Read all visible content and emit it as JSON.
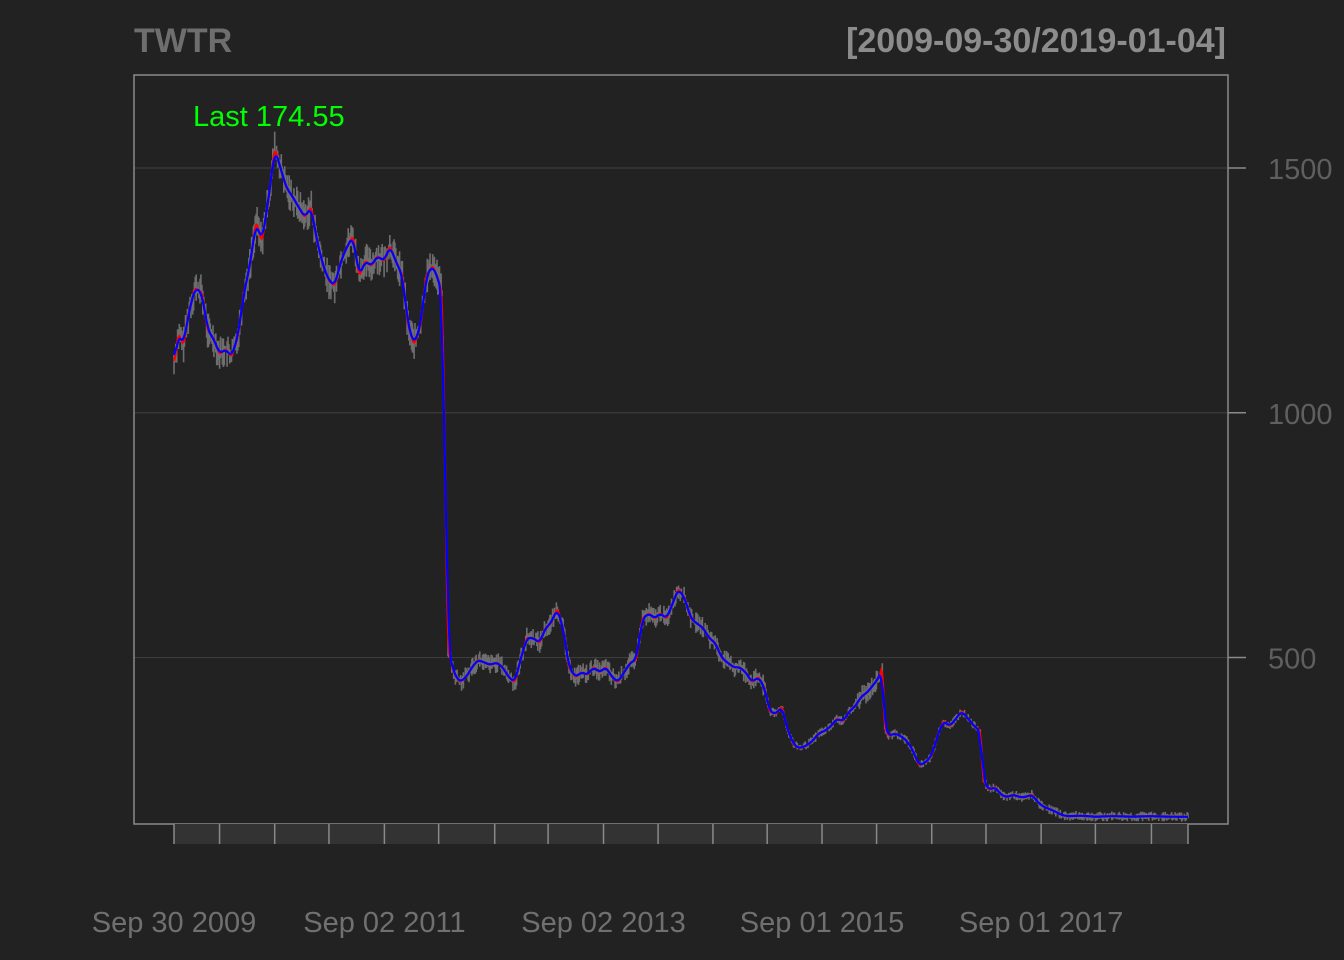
{
  "colors": {
    "background": "#222222",
    "plot_border": "#8a8a8a",
    "grid": "#3c3c3c",
    "price": "#6e6e6e",
    "ma_fast": "#ff0000",
    "ma_slow": "#0000ff",
    "last_label": "#00ff00"
  },
  "chart_data": {
    "type": "line",
    "title": "TWTR",
    "date_range_label": "[2009-09-30/2019-01-04]",
    "last_label": "Last 174.55",
    "ylim": [
      160,
      1690
    ],
    "yticks": [
      500,
      1000,
      1500
    ],
    "xlim": [
      "2009-09-30",
      "2019-01-04"
    ],
    "grid": true,
    "x_tick_marks": [
      "2009-09-30",
      "2010-03-01",
      "2010-09-01",
      "2011-03-01",
      "2011-09-02",
      "2012-03-01",
      "2012-09-04",
      "2013-03-01",
      "2013-09-02",
      "2014-03-03",
      "2014-09-02",
      "2015-03-02",
      "2015-09-01",
      "2016-03-01",
      "2016-09-01",
      "2017-03-01",
      "2017-09-01",
      "2018-03-01",
      "2018-09-04",
      "2019-01-04"
    ],
    "x_tick_labels": [
      {
        "date": "2009-09-30",
        "label": "Sep 30 2009"
      },
      {
        "date": "2011-09-02",
        "label": "Sep 02 2011"
      },
      {
        "date": "2013-09-02",
        "label": "Sep 02 2013"
      },
      {
        "date": "2015-09-01",
        "label": "Sep 01 2015"
      },
      {
        "date": "2017-09-01",
        "label": "Sep 01 2017"
      }
    ],
    "series": [
      {
        "values": [
          [
            "2009-09-30",
            1100
          ],
          [
            "2009-10-15",
            1160
          ],
          [
            "2009-11-01",
            1140
          ],
          [
            "2009-11-20",
            1210
          ],
          [
            "2009-12-10",
            1255
          ],
          [
            "2010-01-01",
            1245
          ],
          [
            "2010-01-20",
            1170
          ],
          [
            "2010-02-10",
            1150
          ],
          [
            "2010-03-01",
            1120
          ],
          [
            "2010-03-20",
            1130
          ],
          [
            "2010-04-10",
            1115
          ],
          [
            "2010-05-01",
            1155
          ],
          [
            "2010-05-20",
            1240
          ],
          [
            "2010-06-10",
            1300
          ],
          [
            "2010-07-01",
            1390
          ],
          [
            "2010-07-20",
            1350
          ],
          [
            "2010-08-10",
            1430
          ],
          [
            "2010-09-01",
            1540
          ],
          [
            "2010-09-20",
            1500
          ],
          [
            "2010-10-10",
            1460
          ],
          [
            "2010-11-01",
            1440
          ],
          [
            "2010-11-20",
            1420
          ],
          [
            "2010-12-10",
            1400
          ],
          [
            "2011-01-01",
            1420
          ],
          [
            "2011-01-20",
            1350
          ],
          [
            "2011-02-10",
            1300
          ],
          [
            "2011-03-01",
            1270
          ],
          [
            "2011-03-20",
            1260
          ],
          [
            "2011-04-10",
            1310
          ],
          [
            "2011-05-01",
            1340
          ],
          [
            "2011-05-20",
            1360
          ],
          [
            "2011-06-10",
            1280
          ],
          [
            "2011-07-01",
            1310
          ],
          [
            "2011-07-20",
            1300
          ],
          [
            "2011-08-10",
            1320
          ],
          [
            "2011-09-01",
            1310
          ],
          [
            "2011-09-20",
            1340
          ],
          [
            "2011-10-10",
            1310
          ],
          [
            "2011-11-01",
            1280
          ],
          [
            "2011-11-20",
            1180
          ],
          [
            "2011-12-10",
            1140
          ],
          [
            "2012-01-01",
            1180
          ],
          [
            "2012-01-20",
            1280
          ],
          [
            "2012-02-10",
            1300
          ],
          [
            "2012-03-01",
            1270
          ],
          [
            "2012-03-12",
            1240
          ],
          [
            "2012-03-22",
            900
          ],
          [
            "2012-04-01",
            520
          ],
          [
            "2012-04-20",
            470
          ],
          [
            "2012-05-10",
            450
          ],
          [
            "2012-06-01",
            460
          ],
          [
            "2012-06-20",
            480
          ],
          [
            "2012-07-10",
            495
          ],
          [
            "2012-08-01",
            490
          ],
          [
            "2012-08-20",
            485
          ],
          [
            "2012-09-10",
            490
          ],
          [
            "2012-10-01",
            480
          ],
          [
            "2012-10-20",
            460
          ],
          [
            "2012-11-10",
            450
          ],
          [
            "2012-12-01",
            500
          ],
          [
            "2012-12-20",
            540
          ],
          [
            "2013-01-10",
            540
          ],
          [
            "2013-02-01",
            530
          ],
          [
            "2013-02-20",
            560
          ],
          [
            "2013-03-10",
            570
          ],
          [
            "2013-04-01",
            600
          ],
          [
            "2013-04-20",
            560
          ],
          [
            "2013-05-10",
            480
          ],
          [
            "2013-06-01",
            460
          ],
          [
            "2013-06-20",
            470
          ],
          [
            "2013-07-10",
            465
          ],
          [
            "2013-08-01",
            480
          ],
          [
            "2013-08-20",
            470
          ],
          [
            "2013-09-10",
            480
          ],
          [
            "2013-10-01",
            460
          ],
          [
            "2013-10-20",
            450
          ],
          [
            "2013-11-10",
            470
          ],
          [
            "2013-12-01",
            490
          ],
          [
            "2013-12-20",
            495
          ],
          [
            "2014-01-10",
            580
          ],
          [
            "2014-02-01",
            590
          ],
          [
            "2014-02-20",
            580
          ],
          [
            "2014-03-10",
            590
          ],
          [
            "2014-04-01",
            580
          ],
          [
            "2014-04-20",
            610
          ],
          [
            "2014-05-10",
            640
          ],
          [
            "2014-06-01",
            620
          ],
          [
            "2014-06-20",
            580
          ],
          [
            "2014-07-10",
            570
          ],
          [
            "2014-08-01",
            560
          ],
          [
            "2014-08-20",
            540
          ],
          [
            "2014-09-10",
            530
          ],
          [
            "2014-10-01",
            500
          ],
          [
            "2014-10-20",
            490
          ],
          [
            "2014-11-10",
            480
          ],
          [
            "2014-12-01",
            480
          ],
          [
            "2014-12-20",
            470
          ],
          [
            "2015-01-10",
            450
          ],
          [
            "2015-02-01",
            460
          ],
          [
            "2015-02-20",
            440
          ],
          [
            "2015-03-10",
            390
          ],
          [
            "2015-04-01",
            385
          ],
          [
            "2015-04-20",
            400
          ],
          [
            "2015-05-10",
            350
          ],
          [
            "2015-06-01",
            320
          ],
          [
            "2015-06-20",
            315
          ],
          [
            "2015-07-10",
            320
          ],
          [
            "2015-08-01",
            330
          ],
          [
            "2015-08-20",
            345
          ],
          [
            "2015-09-10",
            350
          ],
          [
            "2015-10-01",
            360
          ],
          [
            "2015-10-20",
            375
          ],
          [
            "2015-11-10",
            370
          ],
          [
            "2015-12-01",
            390
          ],
          [
            "2015-12-20",
            400
          ],
          [
            "2016-01-10",
            420
          ],
          [
            "2016-02-01",
            430
          ],
          [
            "2016-02-20",
            445
          ],
          [
            "2016-03-10",
            460
          ],
          [
            "2016-03-20",
            480
          ],
          [
            "2016-03-28",
            360
          ],
          [
            "2016-04-10",
            340
          ],
          [
            "2016-05-01",
            345
          ],
          [
            "2016-05-20",
            340
          ],
          [
            "2016-06-10",
            330
          ],
          [
            "2016-07-01",
            310
          ],
          [
            "2016-07-20",
            280
          ],
          [
            "2016-08-10",
            285
          ],
          [
            "2016-09-01",
            300
          ],
          [
            "2016-09-20",
            340
          ],
          [
            "2016-10-10",
            370
          ],
          [
            "2016-11-01",
            360
          ],
          [
            "2016-11-20",
            375
          ],
          [
            "2016-12-10",
            390
          ],
          [
            "2017-01-01",
            375
          ],
          [
            "2017-01-20",
            360
          ],
          [
            "2017-02-10",
            350
          ],
          [
            "2017-02-20",
            250
          ],
          [
            "2017-03-10",
            230
          ],
          [
            "2017-04-01",
            235
          ],
          [
            "2017-04-20",
            220
          ],
          [
            "2017-05-10",
            215
          ],
          [
            "2017-06-01",
            220
          ],
          [
            "2017-06-20",
            215
          ],
          [
            "2017-07-10",
            215
          ],
          [
            "2017-08-01",
            220
          ],
          [
            "2017-08-20",
            205
          ],
          [
            "2017-09-10",
            195
          ],
          [
            "2017-10-01",
            190
          ],
          [
            "2017-10-20",
            185
          ],
          [
            "2017-11-10",
            178
          ],
          [
            "2017-11-30",
            176
          ],
          [
            "2018-01-10",
            177
          ],
          [
            "2018-03-01",
            175
          ],
          [
            "2018-05-01",
            176
          ],
          [
            "2018-07-01",
            175
          ],
          [
            "2018-09-01",
            176
          ],
          [
            "2018-11-01",
            175
          ],
          [
            "2019-01-04",
            174.55
          ]
        ]
      }
    ]
  }
}
